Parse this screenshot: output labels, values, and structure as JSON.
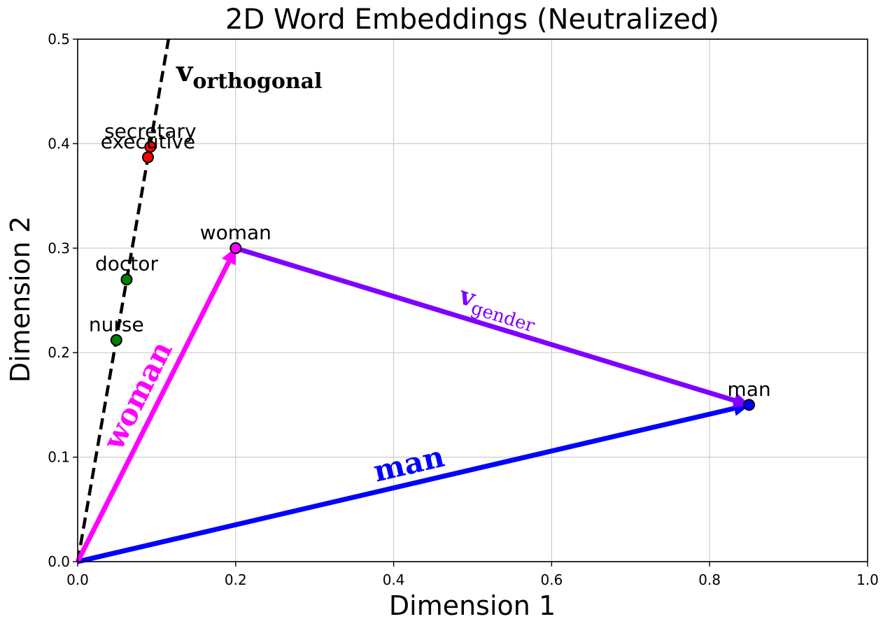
{
  "chart_data": {
    "type": "scatter",
    "title": "2D Word Embeddings (Neutralized)",
    "xlabel": "Dimension 1",
    "ylabel": "Dimension 2",
    "xlim": [
      0.0,
      1.0
    ],
    "ylim": [
      0.0,
      0.5
    ],
    "xticks": [
      "0.0",
      "0.2",
      "0.4",
      "0.6",
      "0.8",
      "1.0"
    ],
    "yticks": [
      "0.0",
      "0.1",
      "0.2",
      "0.3",
      "0.4",
      "0.5"
    ],
    "grid": true,
    "points": [
      {
        "label": "man",
        "x": 0.85,
        "y": 0.15,
        "color": "#0000ff"
      },
      {
        "label": "woman",
        "x": 0.2,
        "y": 0.3,
        "color": "#ff00ff"
      },
      {
        "label": "doctor",
        "x": 0.062,
        "y": 0.27,
        "color": "#008000"
      },
      {
        "label": "nurse",
        "x": 0.049,
        "y": 0.212,
        "color": "#008000"
      },
      {
        "label": "secretary",
        "x": 0.092,
        "y": 0.397,
        "color": "#ff0000"
      },
      {
        "label": "executive",
        "x": 0.089,
        "y": 0.387,
        "color": "#ff0000"
      }
    ],
    "vectors": [
      {
        "label": "man",
        "from": [
          0.0,
          0.0
        ],
        "to": [
          0.85,
          0.15
        ],
        "color": "#0000ff"
      },
      {
        "label": "woman",
        "from": [
          0.0,
          0.0
        ],
        "to": [
          0.2,
          0.3
        ],
        "color": "#ff00ff"
      },
      {
        "label": "v",
        "subscript": "gender",
        "from": [
          0.2,
          0.3
        ],
        "to": [
          0.85,
          0.15
        ],
        "color": "#7f00ff"
      }
    ],
    "orthogonal_line": {
      "label": "v",
      "subscript": "orthogonal",
      "from": [
        0.0,
        0.0
      ],
      "to": [
        0.115,
        0.5
      ],
      "color": "#000000",
      "style": "dashed"
    }
  }
}
